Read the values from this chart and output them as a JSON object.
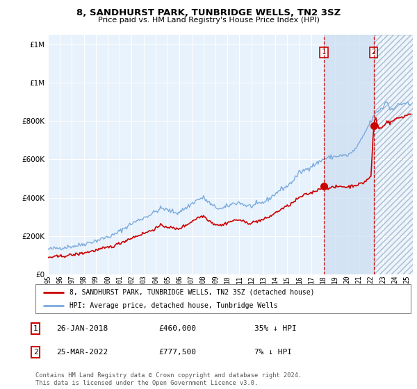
{
  "title": "8, SANDHURST PARK, TUNBRIDGE WELLS, TN2 3SZ",
  "subtitle": "Price paid vs. HM Land Registry's House Price Index (HPI)",
  "legend_line1": "8, SANDHURST PARK, TUNBRIDGE WELLS, TN2 3SZ (detached house)",
  "legend_line2": "HPI: Average price, detached house, Tunbridge Wells",
  "footnote": "Contains HM Land Registry data © Crown copyright and database right 2024.\nThis data is licensed under the Open Government Licence v3.0.",
  "sale1_date": "26-JAN-2018",
  "sale1_price": "£460,000",
  "sale1_hpi": "35% ↓ HPI",
  "sale2_date": "25-MAR-2022",
  "sale2_price": "£777,500",
  "sale2_hpi": "7% ↓ HPI",
  "hpi_color": "#7aaadd",
  "price_color": "#cc0000",
  "vline_color": "#cc0000",
  "shade_color": "#ccddf0",
  "background_color": "#ddeeff",
  "plot_bg": "#e8f2fc",
  "ylim": [
    0,
    1200000
  ],
  "xlim_start": 1995.0,
  "xlim_end": 2025.5,
  "sale1_x": 2018.07,
  "sale1_y": 460000,
  "sale2_x": 2022.23,
  "sale2_y": 777500
}
